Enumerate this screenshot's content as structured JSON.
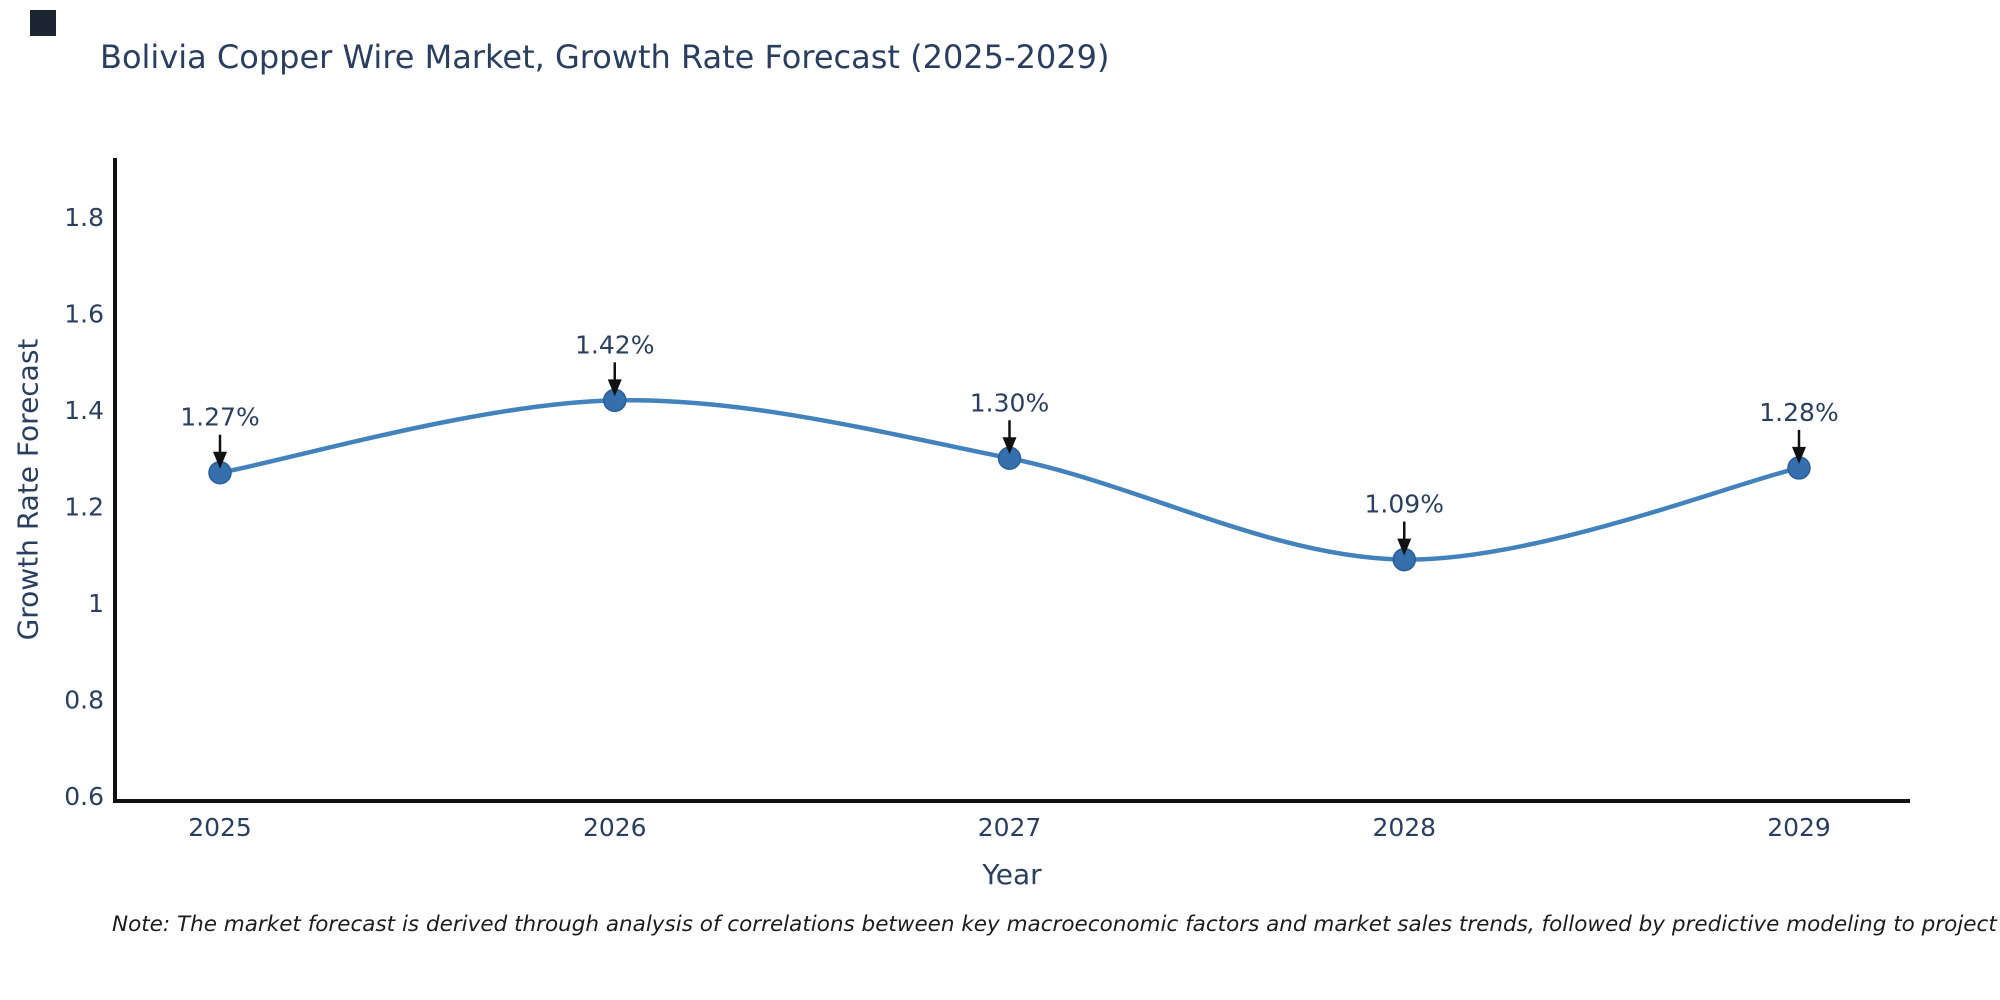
{
  "title": {
    "text": "Bolivia Copper Wire Market, Growth Rate Forecast (2025-2029)"
  },
  "note": {
    "text": "Note: The market forecast is derived through analysis of correlations between key macroeconomic factors and market sales trends, followed by predictive modeling to project future sales"
  },
  "chart_data": {
    "type": "line",
    "line_shape": "spline",
    "title": "Bolivia Copper Wire Market, Growth Rate Forecast (2025-2029)",
    "xlabel": "Year",
    "ylabel": "Growth Rate Forecast",
    "categories": [
      "2025",
      "2026",
      "2027",
      "2028",
      "2029"
    ],
    "values": [
      1.27,
      1.42,
      1.3,
      1.09,
      1.28
    ],
    "point_labels": [
      "1.27%",
      "1.42%",
      "1.30%",
      "1.09%",
      "1.28%"
    ],
    "ytick_labels": [
      "1.8",
      "1.6",
      "1.4",
      "1.2",
      "1",
      "0.8",
      "0.6"
    ],
    "ytick_values": [
      1.8,
      1.6,
      1.4,
      1.2,
      1,
      0.8,
      0.6
    ],
    "ylim": [
      0.6,
      1.92
    ],
    "grid": false,
    "legend": "none",
    "annotation_style": "arrow-down-to-point",
    "colors": {
      "line": "#4383bd",
      "marker": "#366fad",
      "marker_stroke": "#2d5f96",
      "axis": "#111111",
      "arrow": "#111111",
      "text": "#2a3f5f",
      "note_text": "#1c1c1c",
      "background": "#ffffff"
    }
  }
}
